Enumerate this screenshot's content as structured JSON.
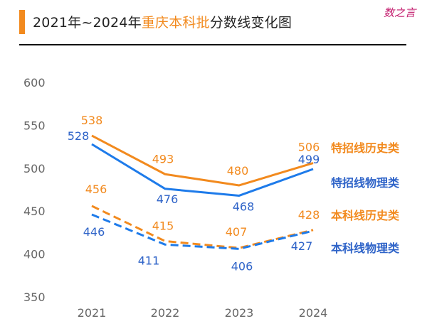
{
  "header": {
    "title_prefix": "2021年~2024年",
    "title_highlight": "重庆本科批",
    "title_suffix": "分数线变化图",
    "brand": "数之言"
  },
  "colors": {
    "orange": "#F28A1E",
    "blue": "#1E7BEA",
    "blue_label": "#2E63C8"
  },
  "chart_data": {
    "type": "line",
    "title": "2021年~2024年重庆本科批分数线变化图",
    "xlabel": "",
    "ylabel": "",
    "categories": [
      "2021",
      "2022",
      "2023",
      "2024"
    ],
    "ylim": [
      350,
      600
    ],
    "yticks": [
      "350",
      "400",
      "450",
      "500",
      "550",
      "600"
    ],
    "grid": false,
    "legend": "right, inline labels at line ends",
    "series": [
      {
        "name": "特招线历史类",
        "values": [
          538,
          493,
          480,
          506
        ],
        "color": "#F28A1E",
        "style": "solid"
      },
      {
        "name": "特招线物理类",
        "values": [
          528,
          476,
          468,
          499
        ],
        "color": "#1E7BEA",
        "style": "solid"
      },
      {
        "name": "本科线历史类",
        "values": [
          456,
          415,
          407,
          428
        ],
        "color": "#F28A1E",
        "style": "dashed"
      },
      {
        "name": "本科线物理类",
        "values": [
          446,
          411,
          406,
          427
        ],
        "color": "#1E7BEA",
        "style": "dashed"
      }
    ]
  }
}
